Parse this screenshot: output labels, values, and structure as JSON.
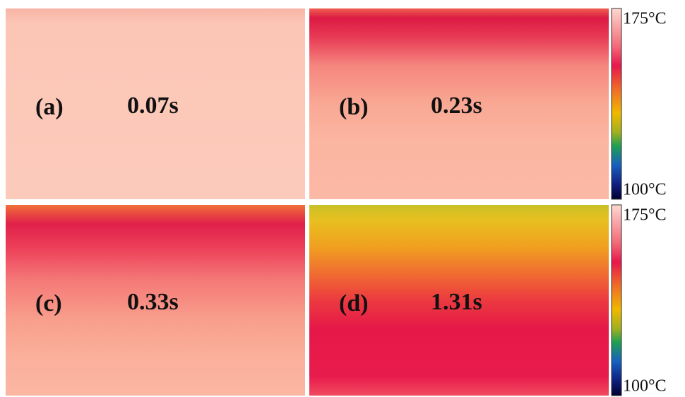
{
  "panels": [
    {
      "label": "(a)",
      "time": "0.07s"
    },
    {
      "label": "(b)",
      "time": "0.23s"
    },
    {
      "label": "(c)",
      "time": "0.33s"
    },
    {
      "label": "(d)",
      "time": "1.31s"
    }
  ],
  "colorbars": [
    {
      "max_label": "175°C",
      "min_label": "100°C"
    },
    {
      "max_label": "175°C",
      "min_label": "100°C"
    }
  ]
}
